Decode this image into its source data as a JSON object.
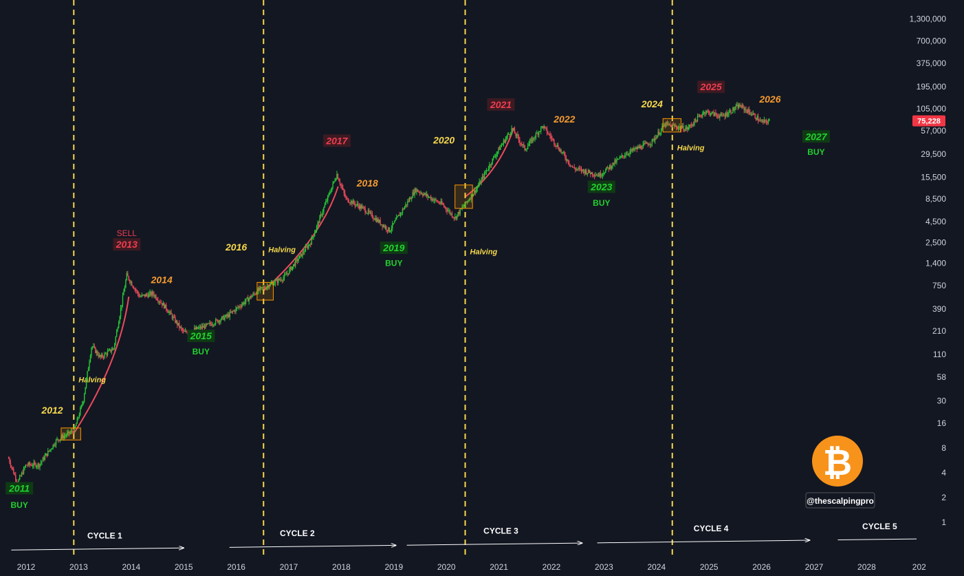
{
  "chart_data": {
    "type": "line",
    "chart_style": "candlestick",
    "log_scale": true,
    "grid": false,
    "background_color": "#131722",
    "up_color": "#26c936",
    "down_color": "#ef4b5c",
    "curve_color": "#ef4b5c",
    "halving_line_color": "#f7d94c",
    "x_ticks": [
      "2012",
      "2013",
      "2014",
      "2015",
      "2016",
      "2017",
      "2018",
      "2019",
      "2020",
      "2021",
      "2022",
      "2023",
      "2024",
      "2025",
      "2026",
      "2027",
      "2028",
      "202"
    ],
    "y_ticks": [
      "1,300,000",
      "700,000",
      "375,000",
      "195,000",
      "105,000",
      "57,000",
      "29,500",
      "15,500",
      "8,500",
      "4,500",
      "2,500",
      "1,400",
      "750",
      "390",
      "210",
      "110",
      "58",
      "30",
      "16",
      "8",
      "4",
      "2",
      "1"
    ],
    "y_tick_values": [
      1300000,
      700000,
      375000,
      195000,
      105000,
      57000,
      29500,
      15500,
      8500,
      4500,
      2500,
      1400,
      750,
      390,
      210,
      110,
      58,
      30,
      16,
      8,
      4,
      2,
      1
    ],
    "price_points": [
      {
        "date": "2011-09-01",
        "price": 6
      },
      {
        "date": "2011-11-01",
        "price": 3
      },
      {
        "date": "2012-01-01",
        "price": 5
      },
      {
        "date": "2012-04-01",
        "price": 5
      },
      {
        "date": "2012-08-01",
        "price": 10
      },
      {
        "date": "2012-12-01",
        "price": 13
      },
      {
        "date": "2013-02-01",
        "price": 30
      },
      {
        "date": "2013-04-01",
        "price": 140
      },
      {
        "date": "2013-06-01",
        "price": 100
      },
      {
        "date": "2013-09-01",
        "price": 130
      },
      {
        "date": "2013-12-01",
        "price": 1000
      },
      {
        "date": "2014-03-01",
        "price": 550
      },
      {
        "date": "2014-06-01",
        "price": 600
      },
      {
        "date": "2014-09-01",
        "price": 400
      },
      {
        "date": "2015-01-01",
        "price": 200
      },
      {
        "date": "2015-06-01",
        "price": 240
      },
      {
        "date": "2015-11-01",
        "price": 320
      },
      {
        "date": "2016-06-01",
        "price": 650
      },
      {
        "date": "2016-12-01",
        "price": 950
      },
      {
        "date": "2017-06-01",
        "price": 2500
      },
      {
        "date": "2017-12-01",
        "price": 17000
      },
      {
        "date": "2018-02-01",
        "price": 8500
      },
      {
        "date": "2018-06-01",
        "price": 6500
      },
      {
        "date": "2018-12-01",
        "price": 3500
      },
      {
        "date": "2019-06-01",
        "price": 11000
      },
      {
        "date": "2019-12-01",
        "price": 7300
      },
      {
        "date": "2020-03-01",
        "price": 5000
      },
      {
        "date": "2020-08-01",
        "price": 11500
      },
      {
        "date": "2020-12-01",
        "price": 28000
      },
      {
        "date": "2021-04-01",
        "price": 60000
      },
      {
        "date": "2021-07-01",
        "price": 34000
      },
      {
        "date": "2021-11-01",
        "price": 65000
      },
      {
        "date": "2022-06-01",
        "price": 20000
      },
      {
        "date": "2022-12-01",
        "price": 16500
      },
      {
        "date": "2023-06-01",
        "price": 30000
      },
      {
        "date": "2023-12-01",
        "price": 42000
      },
      {
        "date": "2024-03-01",
        "price": 68000
      },
      {
        "date": "2024-08-01",
        "price": 60000
      },
      {
        "date": "2024-12-01",
        "price": 98000
      },
      {
        "date": "2025-04-01",
        "price": 85000
      },
      {
        "date": "2025-08-01",
        "price": 115000
      },
      {
        "date": "2025-11-01",
        "price": 90000
      },
      {
        "date": "2026-01-01",
        "price": 72000
      },
      {
        "date": "2026-03-01",
        "price": 75228
      }
    ],
    "halvings": [
      {
        "date": "2012-11-28",
        "label": "Halving",
        "label_price": 50
      },
      {
        "date": "2016-07-09",
        "label": "Halving",
        "label_price": 1900
      },
      {
        "date": "2020-05-11",
        "label": "Halving",
        "label_price": 1800
      },
      {
        "date": "2024-04-20",
        "label": "Halving",
        "label_price": 33000
      }
    ],
    "annotations": [
      {
        "text": "2011",
        "date": "2011-11-15",
        "price": 2.4,
        "style": "buy-box"
      },
      {
        "text": "BUY",
        "date": "2011-11-15",
        "price": 1.5,
        "style": "buy"
      },
      {
        "text": "2012",
        "date": "2012-07-01",
        "price": 21,
        "style": "yellow"
      },
      {
        "text": "SELL",
        "date": "2013-12-01",
        "price": 3000,
        "style": "sell"
      },
      {
        "text": "2013",
        "date": "2013-12-01",
        "price": 2200,
        "style": "red-box"
      },
      {
        "text": "2014",
        "date": "2014-08-01",
        "price": 800,
        "style": "orange"
      },
      {
        "text": "2015",
        "date": "2015-05-01",
        "price": 170,
        "style": "buy-box"
      },
      {
        "text": "BUY",
        "date": "2015-05-01",
        "price": 110,
        "style": "buy"
      },
      {
        "text": "2016",
        "date": "2016-01-01",
        "price": 2000,
        "style": "yellow"
      },
      {
        "text": "2017",
        "date": "2017-12-01",
        "price": 40000,
        "style": "red-box"
      },
      {
        "text": "2018",
        "date": "2018-07-01",
        "price": 12000,
        "style": "orange"
      },
      {
        "text": "2019",
        "date": "2019-01-01",
        "price": 2000,
        "style": "buy-box"
      },
      {
        "text": "BUY",
        "date": "2019-01-01",
        "price": 1300,
        "style": "buy"
      },
      {
        "text": "2020",
        "date": "2019-12-15",
        "price": 40000,
        "style": "yellow"
      },
      {
        "text": "2021",
        "date": "2021-01-15",
        "price": 110000,
        "style": "red-box"
      },
      {
        "text": "2022",
        "date": "2022-04-01",
        "price": 72000,
        "style": "orange"
      },
      {
        "text": "2023",
        "date": "2022-12-15",
        "price": 11000,
        "style": "buy-box"
      },
      {
        "text": "BUY",
        "date": "2022-12-15",
        "price": 7000,
        "style": "buy"
      },
      {
        "text": "2024",
        "date": "2023-12-01",
        "price": 110000,
        "style": "yellow"
      },
      {
        "text": "2025",
        "date": "2025-01-15",
        "price": 180000,
        "style": "red-box"
      },
      {
        "text": "2026",
        "date": "2026-03-01",
        "price": 125000,
        "style": "orange"
      },
      {
        "text": "2027",
        "date": "2027-01-15",
        "price": 45000,
        "style": "buy-box"
      },
      {
        "text": "BUY",
        "date": "2027-01-15",
        "price": 29000,
        "style": "buy"
      }
    ],
    "bull_curves": [
      [
        {
          "date": "2012-11-28",
          "price": 12
        },
        {
          "date": "2013-10-15",
          "price": 90
        },
        {
          "date": "2013-12-15",
          "price": 550
        }
      ],
      [
        {
          "date": "2016-07-09",
          "price": 650
        },
        {
          "date": "2017-08-15",
          "price": 2800
        },
        {
          "date": "2017-12-10",
          "price": 12000
        }
      ],
      [
        {
          "date": "2020-05-11",
          "price": 9000
        },
        {
          "date": "2021-01-01",
          "price": 18000
        },
        {
          "date": "2021-04-15",
          "price": 62000
        }
      ]
    ],
    "halving_boxes": [
      {
        "date_start": "2012-09-01",
        "date_end": "2013-01-15",
        "price_low": 10,
        "price_high": 14
      },
      {
        "date_start": "2016-05-25",
        "date_end": "2016-09-15",
        "price_low": 500,
        "price_high": 820
      },
      {
        "date_start": "2020-03-01",
        "date_end": "2020-07-01",
        "price_low": 6500,
        "price_high": 12500
      },
      {
        "date_start": "2024-02-15",
        "date_end": "2024-06-20",
        "price_low": 55000,
        "price_high": 80000
      }
    ],
    "cycles": [
      {
        "label": "CYCLE 1",
        "date_start": "2011-09-20",
        "date_end": "2014-12-31",
        "label_date": "2013-07-01"
      },
      {
        "label": "CYCLE 2",
        "date_start": "2015-11-15",
        "date_end": "2019-01-15",
        "label_date": "2017-03-01"
      },
      {
        "label": "CYCLE 3",
        "date_start": "2019-04-01",
        "date_end": "2022-08-01",
        "label_date": "2021-01-15"
      },
      {
        "label": "CYCLE 4",
        "date_start": "2022-11-15",
        "date_end": "2026-11-30",
        "label_date": "2025-01-15"
      },
      {
        "label": "CYCLE 5",
        "date_start": "2027-06-15",
        "date_end": "2029-01-31",
        "label_date": "2028-04-01"
      }
    ],
    "current_price": "75,228",
    "current_price_color": "#f23645"
  },
  "watermark": {
    "handle": "@thescalpingpro",
    "logo_symbol": "₿",
    "logo_color": "#f7931a"
  }
}
